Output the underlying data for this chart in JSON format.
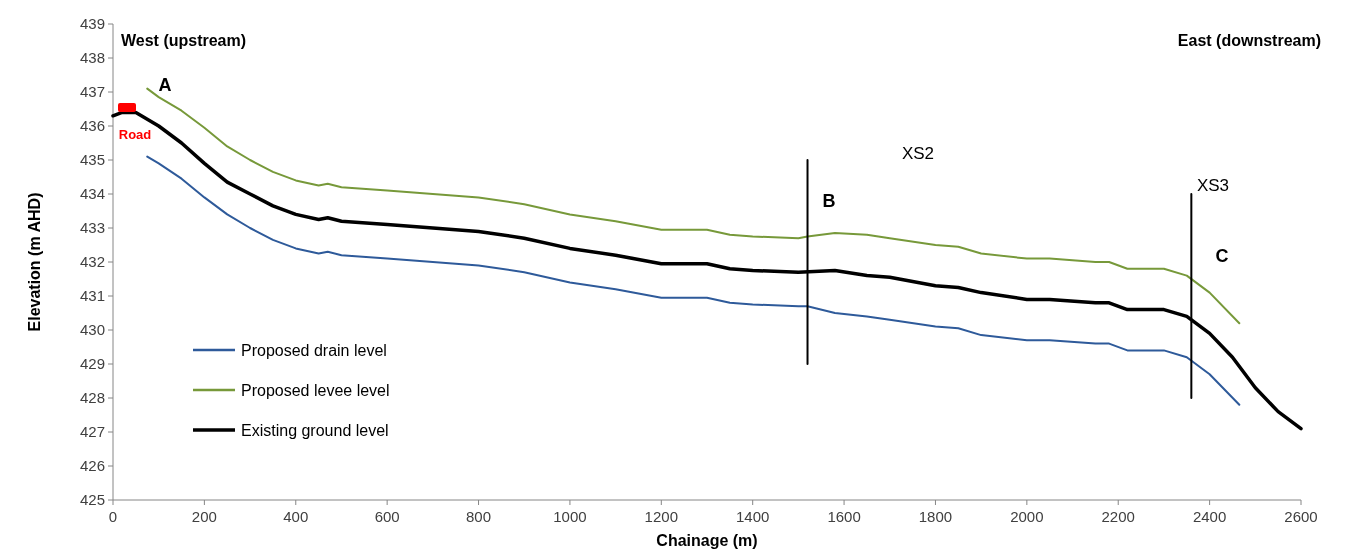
{
  "chart_data": {
    "type": "line",
    "xlabel": "Chainage (m)",
    "ylabel": "Elevation (m AHD)",
    "xlim": [
      0,
      2600
    ],
    "xticks": [
      0,
      200,
      400,
      600,
      800,
      1000,
      1200,
      1400,
      1600,
      1800,
      2000,
      2200,
      2400,
      2600
    ],
    "ylim": [
      425,
      439
    ],
    "yticks": [
      425,
      426,
      427,
      428,
      429,
      430,
      431,
      432,
      433,
      434,
      435,
      436,
      437,
      438,
      439
    ],
    "grid": false,
    "legend": "bottom left",
    "marker": "none",
    "line_style": "solid",
    "series": [
      {
        "name": "Proposed drain level",
        "color": "#2e5a9a",
        "x": [
          75,
          100,
          150,
          200,
          250,
          300,
          350,
          400,
          450,
          470,
          500,
          600,
          700,
          800,
          900,
          1000,
          1100,
          1200,
          1300,
          1350,
          1400,
          1500,
          1520,
          1580,
          1650,
          1700,
          1800,
          1850,
          1900,
          2000,
          2050,
          2150,
          2180,
          2220,
          2300,
          2350,
          2400,
          2465
        ],
        "values": [
          435.1,
          434.9,
          434.45,
          433.9,
          433.4,
          433.0,
          432.65,
          432.4,
          432.25,
          432.3,
          432.2,
          432.1,
          432.0,
          431.9,
          431.7,
          431.4,
          431.2,
          430.95,
          430.95,
          430.8,
          430.75,
          430.7,
          430.7,
          430.5,
          430.4,
          430.3,
          430.1,
          430.05,
          429.85,
          429.7,
          429.7,
          429.6,
          429.6,
          429.4,
          429.4,
          429.2,
          428.7,
          427.8
        ]
      },
      {
        "name": "Proposed levee level",
        "color": "#77993a",
        "x": [
          75,
          100,
          150,
          200,
          250,
          300,
          350,
          400,
          450,
          470,
          500,
          600,
          700,
          800,
          900,
          1000,
          1100,
          1200,
          1300,
          1350,
          1400,
          1500,
          1520,
          1580,
          1650,
          1700,
          1800,
          1850,
          1900,
          2000,
          2050,
          2150,
          2180,
          2220,
          2300,
          2350,
          2400,
          2465
        ],
        "values": [
          437.1,
          436.85,
          436.45,
          435.95,
          435.4,
          435.0,
          434.65,
          434.4,
          434.25,
          434.3,
          434.2,
          434.1,
          434.0,
          433.9,
          433.7,
          433.4,
          433.2,
          432.95,
          432.95,
          432.8,
          432.75,
          432.7,
          432.75,
          432.85,
          432.8,
          432.7,
          432.5,
          432.45,
          432.25,
          432.1,
          432.1,
          432.0,
          432.0,
          431.8,
          431.8,
          431.6,
          431.1,
          430.2
        ]
      },
      {
        "name": "Existing ground level",
        "color": "#000000",
        "x": [
          0,
          20,
          50,
          75,
          100,
          150,
          200,
          250,
          300,
          350,
          400,
          450,
          470,
          500,
          600,
          700,
          800,
          900,
          1000,
          1100,
          1200,
          1300,
          1350,
          1400,
          1500,
          1580,
          1650,
          1700,
          1800,
          1850,
          1900,
          2000,
          2050,
          2150,
          2180,
          2220,
          2300,
          2350,
          2400,
          2450,
          2500,
          2550,
          2600
        ],
        "values": [
          436.3,
          436.4,
          436.4,
          436.2,
          436.0,
          435.5,
          434.9,
          434.35,
          434.0,
          433.65,
          433.4,
          433.25,
          433.3,
          433.2,
          433.1,
          433.0,
          432.9,
          432.7,
          432.4,
          432.2,
          431.95,
          431.95,
          431.8,
          431.75,
          431.7,
          431.75,
          431.6,
          431.55,
          431.3,
          431.25,
          431.1,
          430.9,
          430.9,
          430.8,
          430.8,
          430.6,
          430.6,
          430.4,
          429.9,
          429.2,
          428.3,
          427.6,
          427.1
        ]
      },
      {
        "color": "#000000",
        "x": [
          1520,
          1520
        ],
        "values": [
          429,
          435
        ]
      },
      {
        "color": "#000000",
        "x": [
          2360,
          2360
        ],
        "values": [
          428,
          434
        ]
      }
    ],
    "annotations": [
      "West (upstream)",
      "East (downstream)",
      "A",
      "Road",
      "B",
      "XS2",
      "XS3",
      "C"
    ]
  }
}
